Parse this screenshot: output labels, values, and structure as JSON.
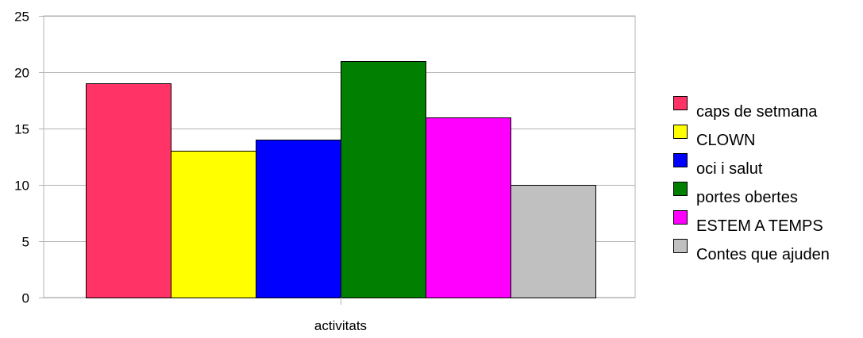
{
  "chart_data": {
    "type": "bar",
    "categories": [
      "activitats"
    ],
    "series": [
      {
        "name": "caps de setmana",
        "values": [
          19
        ],
        "color": "#ff3366"
      },
      {
        "name": "CLOWN",
        "values": [
          13
        ],
        "color": "#ffff00"
      },
      {
        "name": "oci i salut",
        "values": [
          14
        ],
        "color": "#0000ff"
      },
      {
        "name": "portes obertes",
        "values": [
          21
        ],
        "color": "#007f00"
      },
      {
        "name": "ESTEM A TEMPS",
        "values": [
          16
        ],
        "color": "#ff00ff"
      },
      {
        "name": "Contes que ajuden",
        "values": [
          10
        ],
        "color": "#c0c0c0"
      }
    ],
    "ylim": [
      0,
      25
    ],
    "yticks": [
      0,
      5,
      10,
      15,
      20,
      25
    ],
    "grid": true,
    "legend_position": "right"
  }
}
